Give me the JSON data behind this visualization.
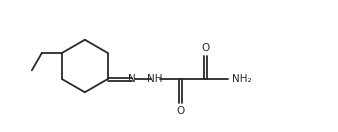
{
  "bg_color": "#ffffff",
  "line_color": "#2a2a2a",
  "line_width": 1.3,
  "font_size": 7.5,
  "fig_width": 3.38,
  "fig_height": 1.32,
  "dpi": 100,
  "xlim": [
    -0.5,
    9.5
  ],
  "ylim": [
    0.2,
    4.0
  ]
}
